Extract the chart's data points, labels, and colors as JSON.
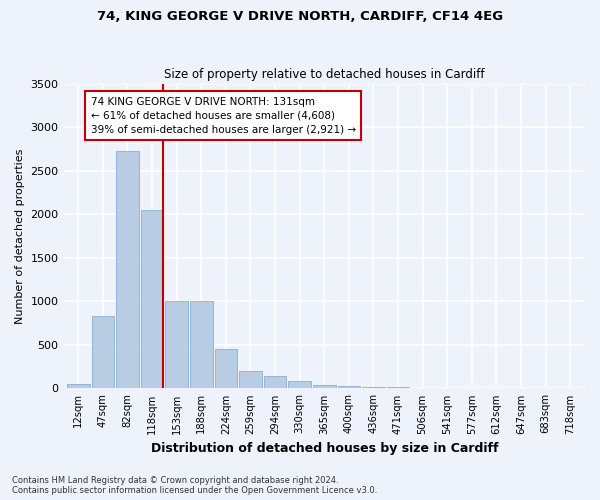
{
  "title1": "74, KING GEORGE V DRIVE NORTH, CARDIFF, CF14 4EG",
  "title2": "Size of property relative to detached houses in Cardiff",
  "xlabel": "Distribution of detached houses by size in Cardiff",
  "ylabel": "Number of detached properties",
  "categories": [
    "12sqm",
    "47sqm",
    "82sqm",
    "118sqm",
    "153sqm",
    "188sqm",
    "224sqm",
    "259sqm",
    "294sqm",
    "330sqm",
    "365sqm",
    "400sqm",
    "436sqm",
    "471sqm",
    "506sqm",
    "541sqm",
    "577sqm",
    "612sqm",
    "647sqm",
    "683sqm",
    "718sqm"
  ],
  "values": [
    50,
    830,
    2720,
    2050,
    1000,
    1000,
    450,
    200,
    140,
    80,
    40,
    30,
    20,
    15,
    10,
    5,
    3,
    2,
    1,
    1,
    1
  ],
  "bar_color": "#b8cce4",
  "bar_edge_color": "#8aafd4",
  "vline_x_index": 3,
  "vline_color": "#c00000",
  "annotation_text": "74 KING GEORGE V DRIVE NORTH: 131sqm\n← 61% of detached houses are smaller (4,608)\n39% of semi-detached houses are larger (2,921) →",
  "annotation_box_color": "#ffffff",
  "annotation_box_edge": "#c00000",
  "ylim": [
    0,
    3500
  ],
  "yticks": [
    0,
    500,
    1000,
    1500,
    2000,
    2500,
    3000,
    3500
  ],
  "footnote1": "Contains HM Land Registry data © Crown copyright and database right 2024.",
  "footnote2": "Contains public sector information licensed under the Open Government Licence v3.0.",
  "bg_color": "#eef2fa",
  "grid_color": "#ffffff"
}
